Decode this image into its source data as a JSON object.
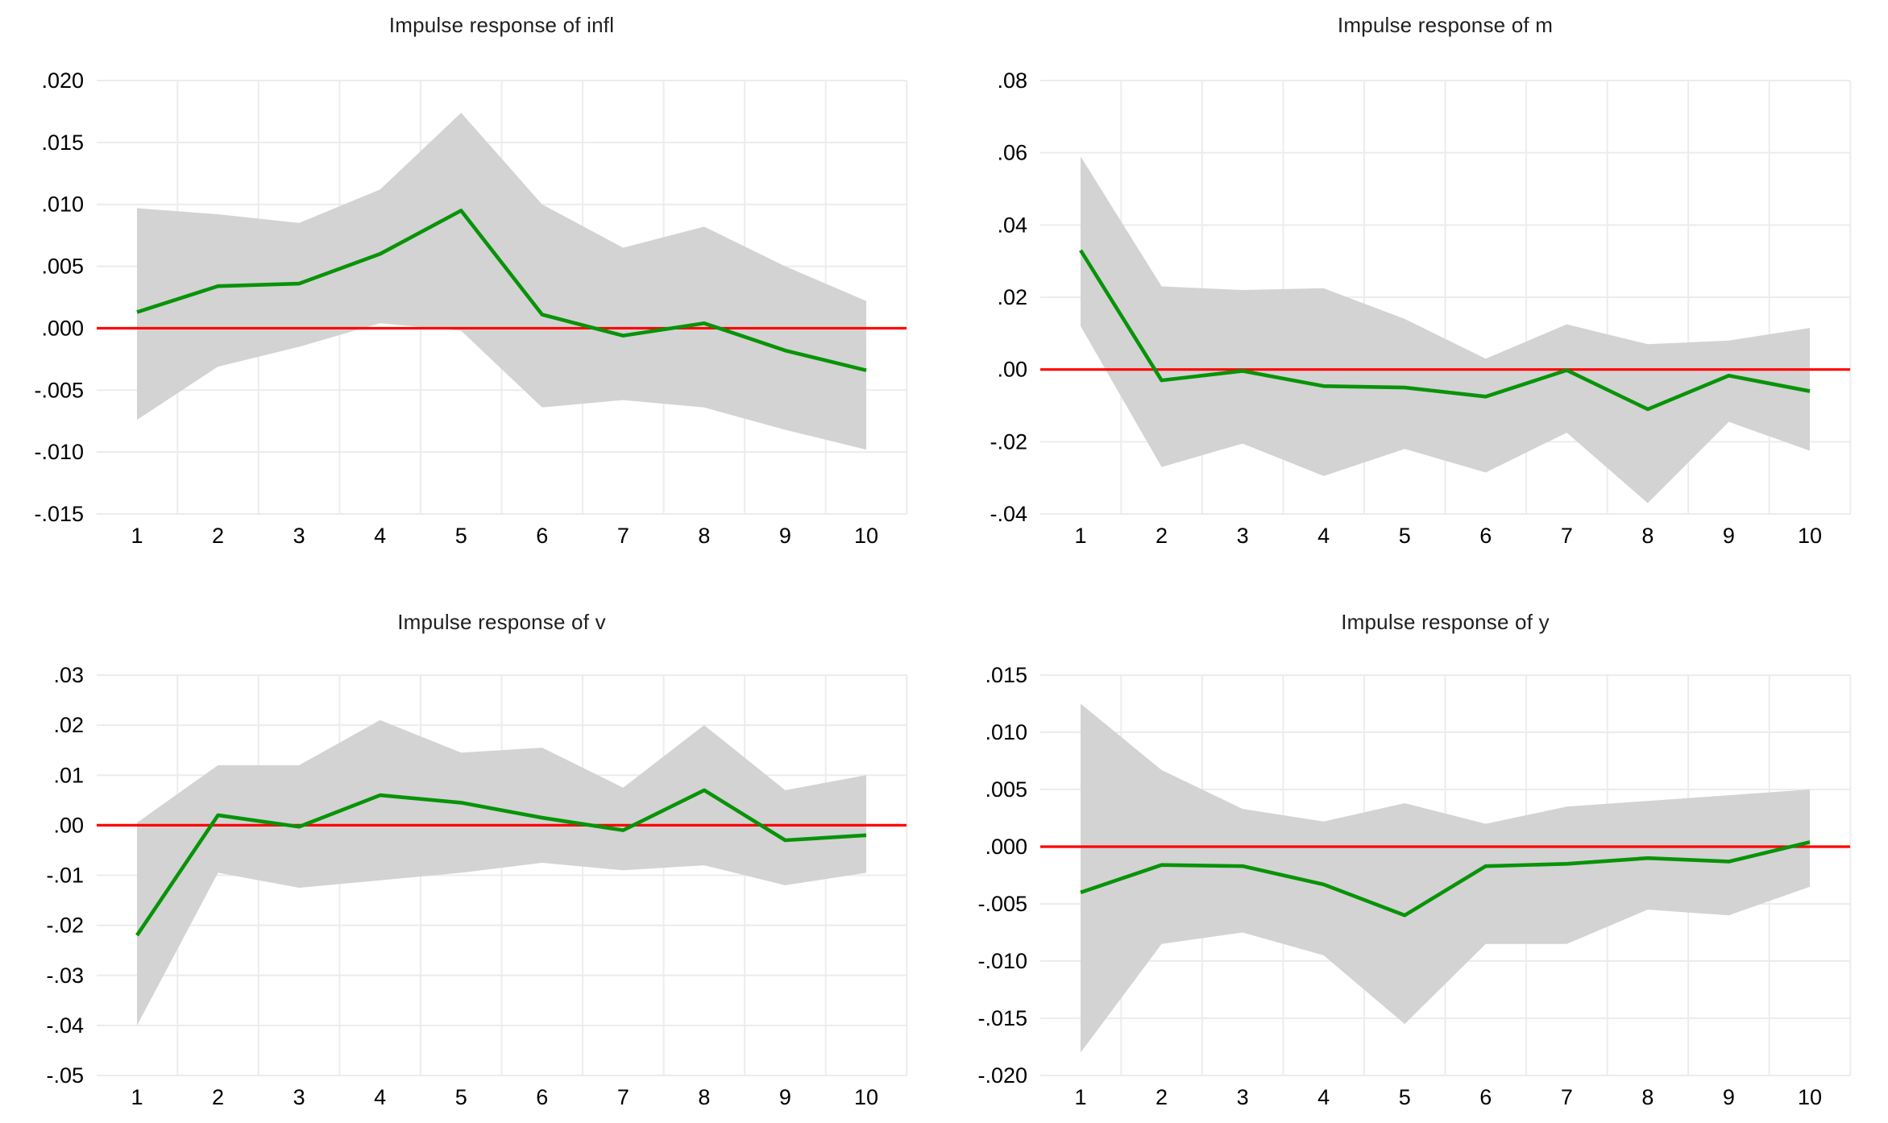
{
  "page": {
    "background": "#ffffff"
  },
  "colors": {
    "response_line": "#089308",
    "zero_line": "#fe0000",
    "confidence_band": "#d3d3d3",
    "gridline": "#ececec",
    "title_text": "#1f1f1f",
    "tick_text": "#000000"
  },
  "chart_data": [
    {
      "type": "line",
      "title": "Impulse response of infl",
      "x": [
        1,
        2,
        3,
        4,
        5,
        6,
        7,
        8,
        9,
        10
      ],
      "x_labels": [
        "1",
        "2",
        "3",
        "4",
        "5",
        "6",
        "7",
        "8",
        "9",
        "10"
      ],
      "xlabel": "",
      "ylabel": "",
      "ylim": [
        -0.015,
        0.02
      ],
      "y_ticks": [
        {
          "label": ".020",
          "value": 0.02
        },
        {
          "label": ".015",
          "value": 0.015
        },
        {
          "label": ".010",
          "value": 0.01
        },
        {
          "label": ".005",
          "value": 0.005
        },
        {
          "label": ".000",
          "value": 0.0
        },
        {
          "label": "-.005",
          "value": -0.005
        },
        {
          "label": "-.010",
          "value": -0.01
        },
        {
          "label": "-.015",
          "value": -0.015
        }
      ],
      "zero_line": true,
      "grid": true,
      "legend": "none",
      "series": [
        {
          "name": "response",
          "values": [
            0.0013,
            0.0034,
            0.0036,
            0.006,
            0.0095,
            0.0011,
            -0.0006,
            0.0004,
            -0.0018,
            -0.0034
          ]
        },
        {
          "name": "ci_upper",
          "values": [
            0.0097,
            0.0092,
            0.0085,
            0.0112,
            0.0174,
            0.01,
            0.0065,
            0.0082,
            0.005,
            0.0022
          ]
        },
        {
          "name": "ci_lower",
          "values": [
            -0.0074,
            -0.0031,
            -0.0015,
            0.0004,
            -0.0002,
            -0.0064,
            -0.0058,
            -0.0064,
            -0.0082,
            -0.0098
          ]
        }
      ]
    },
    {
      "type": "line",
      "title": "Impulse response of m",
      "x": [
        1,
        2,
        3,
        4,
        5,
        6,
        7,
        8,
        9,
        10
      ],
      "x_labels": [
        "1",
        "2",
        "3",
        "4",
        "5",
        "6",
        "7",
        "8",
        "9",
        "10"
      ],
      "xlabel": "",
      "ylabel": "",
      "ylim": [
        -0.04,
        0.08
      ],
      "y_ticks": [
        {
          "label": ".08",
          "value": 0.08
        },
        {
          "label": ".06",
          "value": 0.06
        },
        {
          "label": ".04",
          "value": 0.04
        },
        {
          "label": ".02",
          "value": 0.02
        },
        {
          "label": ".00",
          "value": 0.0
        },
        {
          "label": "-.02",
          "value": -0.02
        },
        {
          "label": "-.04",
          "value": -0.04
        }
      ],
      "zero_line": true,
      "grid": true,
      "legend": "none",
      "series": [
        {
          "name": "response",
          "values": [
            0.033,
            -0.003,
            -0.0004,
            -0.0046,
            -0.005,
            -0.0075,
            -0.0002,
            -0.011,
            -0.0017,
            -0.006
          ]
        },
        {
          "name": "ci_upper",
          "values": [
            0.059,
            0.023,
            0.022,
            0.0225,
            0.014,
            0.003,
            0.0125,
            0.007,
            0.008,
            0.0115
          ]
        },
        {
          "name": "ci_lower",
          "values": [
            0.012,
            -0.027,
            -0.0205,
            -0.0295,
            -0.022,
            -0.0285,
            -0.0175,
            -0.037,
            -0.0145,
            -0.0225
          ]
        }
      ]
    },
    {
      "type": "line",
      "title": "Impulse response of v",
      "x": [
        1,
        2,
        3,
        4,
        5,
        6,
        7,
        8,
        9,
        10
      ],
      "x_labels": [
        "1",
        "2",
        "3",
        "4",
        "5",
        "6",
        "7",
        "8",
        "9",
        "10"
      ],
      "xlabel": "",
      "ylabel": "",
      "ylim": [
        -0.05,
        0.03
      ],
      "y_ticks": [
        {
          "label": ".03",
          "value": 0.03
        },
        {
          "label": ".02",
          "value": 0.02
        },
        {
          "label": ".01",
          "value": 0.01
        },
        {
          "label": ".00",
          "value": 0.0
        },
        {
          "label": "-.01",
          "value": -0.01
        },
        {
          "label": "-.02",
          "value": -0.02
        },
        {
          "label": "-.03",
          "value": -0.03
        },
        {
          "label": "-.04",
          "value": -0.04
        },
        {
          "label": "-.05",
          "value": -0.05
        }
      ],
      "zero_line": true,
      "grid": true,
      "legend": "none",
      "series": [
        {
          "name": "response",
          "values": [
            -0.022,
            0.002,
            -0.0003,
            0.006,
            0.0045,
            0.0015,
            -0.001,
            0.007,
            -0.003,
            -0.002
          ]
        },
        {
          "name": "ci_upper",
          "values": [
            0.0005,
            0.012,
            0.012,
            0.021,
            0.0145,
            0.0155,
            0.0075,
            0.02,
            0.007,
            0.01
          ]
        },
        {
          "name": "ci_lower",
          "values": [
            -0.04,
            -0.0095,
            -0.0125,
            -0.011,
            -0.0095,
            -0.0075,
            -0.009,
            -0.008,
            -0.012,
            -0.0095
          ]
        }
      ]
    },
    {
      "type": "line",
      "title": "Impulse response of y",
      "x": [
        1,
        2,
        3,
        4,
        5,
        6,
        7,
        8,
        9,
        10
      ],
      "x_labels": [
        "1",
        "2",
        "3",
        "4",
        "5",
        "6",
        "7",
        "8",
        "9",
        "10"
      ],
      "xlabel": "",
      "ylabel": "",
      "ylim": [
        -0.02,
        0.015
      ],
      "y_ticks": [
        {
          "label": ".015",
          "value": 0.015
        },
        {
          "label": ".010",
          "value": 0.01
        },
        {
          "label": ".005",
          "value": 0.005
        },
        {
          "label": ".000",
          "value": 0.0
        },
        {
          "label": "-.005",
          "value": -0.005
        },
        {
          "label": "-.010",
          "value": -0.01
        },
        {
          "label": "-.015",
          "value": -0.015
        },
        {
          "label": "-.020",
          "value": -0.02
        }
      ],
      "zero_line": true,
      "grid": true,
      "legend": "none",
      "series": [
        {
          "name": "response",
          "values": [
            -0.004,
            -0.0016,
            -0.0017,
            -0.0033,
            -0.006,
            -0.0017,
            -0.0015,
            -0.001,
            -0.0013,
            0.0004
          ]
        },
        {
          "name": "ci_upper",
          "values": [
            0.0125,
            0.0067,
            0.0033,
            0.0022,
            0.0038,
            0.002,
            0.0035,
            0.004,
            0.0045,
            0.005
          ]
        },
        {
          "name": "ci_lower",
          "values": [
            -0.018,
            -0.0085,
            -0.0075,
            -0.0095,
            -0.0155,
            -0.0085,
            -0.0085,
            -0.0055,
            -0.006,
            -0.0035
          ]
        }
      ]
    }
  ]
}
